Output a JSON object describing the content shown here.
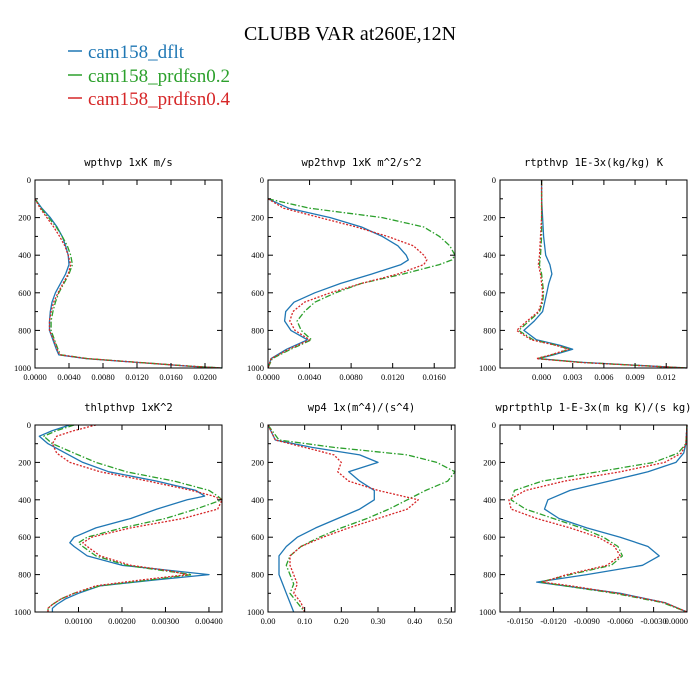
{
  "figure_title": "CLUBB VAR at260E,12N",
  "legend": [
    {
      "label": "cam158_dflt",
      "color": "#1f77b4",
      "dash": "solid"
    },
    {
      "label": "cam158_prdfsn0.2",
      "color": "#2ca02c",
      "dash": "dashdot"
    },
    {
      "label": "cam158_prdfsn0.4",
      "color": "#d62728",
      "dash": "dotted"
    }
  ],
  "colors": {
    "dflt": "#1f77b4",
    "prd02": "#2ca02c",
    "prd04": "#d62728"
  },
  "chart_data": [
    {
      "type": "line",
      "title": "wpthvp  1xK m/s",
      "xlim": [
        0.0,
        0.022
      ],
      "ylim": [
        1000,
        0
      ],
      "xticks": [
        0.0,
        0.004,
        0.008,
        0.012,
        0.016,
        0.02
      ],
      "xtick_labels": [
        "0.0000",
        "0.0040",
        "0.0080",
        "0.0120",
        "0.0160",
        "0.0200"
      ],
      "yticks": [
        0,
        200,
        400,
        600,
        800,
        1000
      ],
      "ytick_labels": [
        "0",
        "200",
        "400",
        "600",
        "800",
        "1000"
      ],
      "y": [
        100,
        150,
        200,
        250,
        300,
        350,
        400,
        450,
        500,
        550,
        600,
        650,
        700,
        750,
        800,
        850,
        900,
        930,
        950,
        970,
        990,
        1000
      ],
      "series": [
        {
          "name": "cam158_dflt",
          "x": [
            0.0,
            0.0008,
            0.0018,
            0.0026,
            0.0032,
            0.0036,
            0.0039,
            0.004,
            0.0036,
            0.003,
            0.0024,
            0.002,
            0.0018,
            0.0017,
            0.0017,
            0.0021,
            0.0025,
            0.0028,
            0.006,
            0.012,
            0.018,
            0.022
          ]
        },
        {
          "name": "cam158_prdfsn0.2",
          "x": [
            0.0,
            0.0007,
            0.0016,
            0.0025,
            0.0032,
            0.0038,
            0.0042,
            0.0044,
            0.004,
            0.0034,
            0.0028,
            0.0024,
            0.0021,
            0.0019,
            0.0019,
            0.0023,
            0.0027,
            0.003,
            0.0062,
            0.0122,
            0.0182,
            0.022
          ]
        },
        {
          "name": "cam158_prdfsn0.4",
          "x": [
            0.0,
            0.0006,
            0.0014,
            0.0022,
            0.0029,
            0.0035,
            0.0039,
            0.0042,
            0.0039,
            0.0033,
            0.0027,
            0.0022,
            0.0019,
            0.0017,
            0.0017,
            0.0022,
            0.0026,
            0.0029,
            0.0061,
            0.0121,
            0.0181,
            0.022
          ]
        }
      ]
    },
    {
      "type": "line",
      "title": "wp2thvp  1xK m^2/s^2",
      "xlim": [
        0.0,
        0.018
      ],
      "ylim": [
        1000,
        0
      ],
      "xticks": [
        0.0,
        0.004,
        0.008,
        0.012,
        0.016
      ],
      "xtick_labels": [
        "0.0000",
        "0.0040",
        "0.0080",
        "0.0120",
        "0.0160"
      ],
      "yticks": [
        0,
        200,
        400,
        600,
        800,
        1000
      ],
      "ytick_labels": [
        "0",
        "200",
        "400",
        "600",
        "800",
        "1000"
      ],
      "y": [
        100,
        150,
        200,
        250,
        300,
        350,
        400,
        425,
        450,
        500,
        550,
        600,
        650,
        700,
        750,
        800,
        850,
        900,
        950,
        1000
      ],
      "series": [
        {
          "name": "cam158_dflt",
          "x": [
            0.0,
            0.002,
            0.006,
            0.009,
            0.011,
            0.0125,
            0.0133,
            0.0135,
            0.0128,
            0.01,
            0.007,
            0.0045,
            0.0025,
            0.0017,
            0.0016,
            0.0022,
            0.0038,
            0.0018,
            0.0003,
            0.0
          ]
        },
        {
          "name": "cam158_prdfsn0.2",
          "x": [
            0.0,
            0.004,
            0.011,
            0.015,
            0.0165,
            0.0175,
            0.018,
            0.0177,
            0.0165,
            0.013,
            0.009,
            0.0065,
            0.0045,
            0.0035,
            0.0028,
            0.0032,
            0.0042,
            0.0022,
            0.0004,
            0.0
          ]
        },
        {
          "name": "cam158_prdfsn0.4",
          "x": [
            0.0,
            0.0015,
            0.005,
            0.0085,
            0.0115,
            0.014,
            0.015,
            0.0153,
            0.015,
            0.0125,
            0.009,
            0.006,
            0.0035,
            0.0024,
            0.0021,
            0.0026,
            0.004,
            0.002,
            0.0003,
            0.0
          ]
        }
      ]
    },
    {
      "type": "line",
      "title": "rtpthvp  1E-3x(kg/kg) K",
      "xlim": [
        -0.004,
        0.014
      ],
      "ylim": [
        1000,
        0
      ],
      "xticks": [
        0.0,
        0.003,
        0.006,
        0.009,
        0.012
      ],
      "xtick_labels": [
        "0.000",
        "0.003",
        "0.006",
        "0.009",
        "0.012"
      ],
      "yticks": [
        0,
        200,
        400,
        600,
        800,
        1000
      ],
      "ytick_labels": [
        "0",
        "200",
        "400",
        "600",
        "800",
        "1000"
      ],
      "y": [
        0,
        100,
        200,
        300,
        400,
        450,
        500,
        550,
        600,
        650,
        700,
        750,
        800,
        850,
        880,
        900,
        930,
        950,
        970,
        1000
      ],
      "series": [
        {
          "name": "cam158_dflt",
          "x": [
            0.0,
            0.0,
            0.0001,
            0.0002,
            0.0004,
            0.0008,
            0.001,
            0.0007,
            0.0005,
            0.0003,
            0.0001,
            -0.0007,
            -0.0017,
            -0.0005,
            0.0018,
            0.003,
            0.0012,
            -0.0003,
            0.004,
            0.014
          ]
        },
        {
          "name": "cam158_prdfsn0.2",
          "x": [
            0.0,
            0.0,
            0.0,
            0.0,
            -0.0001,
            -0.0002,
            0.0,
            0.0001,
            0.0002,
            0.0001,
            -0.0002,
            -0.0012,
            -0.0022,
            -0.0008,
            0.0015,
            0.0027,
            0.001,
            -0.0004,
            0.0038,
            0.014
          ]
        },
        {
          "name": "cam158_prdfsn0.4",
          "x": [
            0.0,
            0.0,
            0.0,
            -0.0001,
            -0.0002,
            -0.0003,
            -0.0001,
            0.0,
            0.0001,
            0.0,
            -0.0003,
            -0.0014,
            -0.0024,
            -0.001,
            0.0014,
            0.0026,
            0.0009,
            -0.0005,
            0.0037,
            0.014
          ]
        }
      ]
    },
    {
      "type": "line",
      "title": "thlpthvp  1xK^2",
      "xlim": [
        0.0,
        0.0043
      ],
      "ylim": [
        1000,
        0
      ],
      "xticks": [
        0.001,
        0.002,
        0.003,
        0.004
      ],
      "xtick_labels": [
        "0.00100",
        "0.00200",
        "0.00300",
        "0.00400"
      ],
      "yticks": [
        0,
        200,
        400,
        600,
        800,
        1000
      ],
      "ytick_labels": [
        "0",
        "200",
        "400",
        "600",
        "800",
        "1000"
      ],
      "y": [
        0,
        30,
        60,
        100,
        150,
        200,
        250,
        300,
        350,
        380,
        400,
        450,
        500,
        550,
        600,
        630,
        650,
        700,
        750,
        780,
        800,
        830,
        860,
        900,
        930,
        960,
        980,
        1000
      ],
      "series": [
        {
          "name": "cam158_dflt",
          "x": [
            0.0008,
            0.0004,
            0.0001,
            0.0003,
            0.0007,
            0.0011,
            0.0017,
            0.0028,
            0.0037,
            0.0039,
            0.0035,
            0.0028,
            0.0022,
            0.0014,
            0.0009,
            0.0008,
            0.0009,
            0.0012,
            0.002,
            0.0032,
            0.004,
            0.0027,
            0.0015,
            0.001,
            0.0007,
            0.0005,
            0.0004,
            0.0004
          ]
        },
        {
          "name": "cam158_prdfsn0.2",
          "x": [
            0.0009,
            0.0005,
            0.0002,
            0.0004,
            0.0009,
            0.0014,
            0.0021,
            0.0032,
            0.004,
            0.0042,
            0.0043,
            0.0037,
            0.003,
            0.002,
            0.0012,
            0.001,
            0.0011,
            0.0014,
            0.0021,
            0.003,
            0.0036,
            0.0026,
            0.0015,
            0.0009,
            0.0006,
            0.0004,
            0.0003,
            0.0003
          ]
        },
        {
          "name": "cam158_prdfsn0.4",
          "x": [
            0.0014,
            0.0009,
            0.0005,
            0.0004,
            0.0005,
            0.0008,
            0.0015,
            0.0026,
            0.0036,
            0.0041,
            0.0043,
            0.0042,
            0.0034,
            0.0022,
            0.0013,
            0.0011,
            0.0012,
            0.0015,
            0.0022,
            0.0031,
            0.0035,
            0.0024,
            0.0014,
            0.0009,
            0.0006,
            0.0004,
            0.0003,
            0.0003
          ]
        }
      ]
    },
    {
      "type": "line",
      "title": "wp4  1x(m^4)/(s^4)",
      "xlim": [
        0.0,
        0.51
      ],
      "ylim": [
        1000,
        0
      ],
      "xticks": [
        0.0,
        0.1,
        0.2,
        0.3,
        0.4,
        0.5
      ],
      "xtick_labels": [
        "0.00",
        "0.10",
        "0.20",
        "0.30",
        "0.40",
        "0.50"
      ],
      "yticks": [
        0,
        200,
        400,
        600,
        800,
        1000
      ],
      "ytick_labels": [
        "0",
        "200",
        "400",
        "600",
        "800",
        "1000"
      ],
      "y": [
        0,
        80,
        120,
        160,
        200,
        250,
        300,
        350,
        400,
        450,
        500,
        550,
        600,
        650,
        700,
        750,
        800,
        850,
        900,
        950,
        1000
      ],
      "series": [
        {
          "name": "cam158_dflt",
          "x": [
            0.0,
            0.02,
            0.12,
            0.25,
            0.3,
            0.22,
            0.25,
            0.29,
            0.29,
            0.25,
            0.19,
            0.13,
            0.08,
            0.05,
            0.03,
            0.03,
            0.03,
            0.04,
            0.05,
            0.06,
            0.07
          ]
        },
        {
          "name": "cam158_prdfsn0.2",
          "x": [
            0.0,
            0.03,
            0.18,
            0.38,
            0.46,
            0.51,
            0.49,
            0.43,
            0.38,
            0.33,
            0.27,
            0.2,
            0.14,
            0.09,
            0.06,
            0.05,
            0.06,
            0.07,
            0.06,
            0.08,
            0.1
          ]
        },
        {
          "name": "cam158_prdfsn0.4",
          "x": [
            0.0,
            0.02,
            0.1,
            0.18,
            0.2,
            0.19,
            0.22,
            0.3,
            0.41,
            0.38,
            0.3,
            0.22,
            0.15,
            0.09,
            0.06,
            0.06,
            0.07,
            0.08,
            0.07,
            0.09,
            0.1
          ]
        }
      ]
    },
    {
      "type": "line",
      "title": "wprtpthlp  1-E-3x(m kg K)/(s kg)",
      "xlim": [
        -0.0168,
        0.0
      ],
      "ylim": [
        1000,
        0
      ],
      "xticks": [
        -0.015,
        -0.012,
        -0.009,
        -0.006,
        -0.003,
        0.0
      ],
      "xtick_labels": [
        "-0.0150",
        "-0.0120",
        "-0.0090",
        "-0.0060",
        "-0.0030",
        "0.0000"
      ],
      "yticks": [
        0,
        200,
        400,
        600,
        800,
        1000
      ],
      "ytick_labels": [
        "0",
        "200",
        "400",
        "600",
        "800",
        "1000"
      ],
      "y": [
        0,
        100,
        150,
        200,
        250,
        300,
        350,
        400,
        450,
        500,
        550,
        600,
        650,
        700,
        750,
        800,
        840,
        860,
        900,
        950,
        1000
      ],
      "series": [
        {
          "name": "cam158_dflt",
          "x": [
            0.0,
            -0.0001,
            -0.0003,
            -0.001,
            -0.0035,
            -0.007,
            -0.0105,
            -0.0125,
            -0.0128,
            -0.0115,
            -0.009,
            -0.006,
            -0.0035,
            -0.0025,
            -0.004,
            -0.009,
            -0.0135,
            -0.011,
            -0.006,
            -0.002,
            0.0
          ]
        },
        {
          "name": "cam158_prdfsn0.2",
          "x": [
            0.0,
            -0.0001,
            -0.0008,
            -0.003,
            -0.008,
            -0.013,
            -0.0155,
            -0.0158,
            -0.0145,
            -0.012,
            -0.0095,
            -0.0075,
            -0.0062,
            -0.0058,
            -0.0068,
            -0.0105,
            -0.0132,
            -0.011,
            -0.0065,
            -0.0022,
            0.0
          ]
        },
        {
          "name": "cam158_prdfsn0.4",
          "x": [
            0.0,
            -0.0001,
            -0.0005,
            -0.002,
            -0.006,
            -0.011,
            -0.0145,
            -0.016,
            -0.0158,
            -0.0135,
            -0.0105,
            -0.008,
            -0.0065,
            -0.006,
            -0.0072,
            -0.0108,
            -0.013,
            -0.0105,
            -0.0062,
            -0.002,
            0.0
          ]
        }
      ]
    }
  ]
}
